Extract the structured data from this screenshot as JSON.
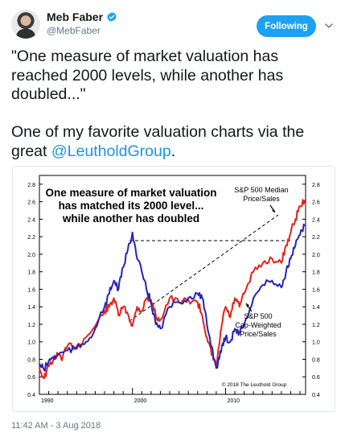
{
  "author": {
    "display_name": "Meb Faber",
    "handle": "@MebFaber",
    "avatar_icon": "avatar",
    "verified_icon": "verified-badge-icon"
  },
  "header": {
    "follow_label": "Following",
    "menu_icon": "chevron-down-icon"
  },
  "tweet": {
    "line_1": "\"One measure of market valuation has reached 2000 levels, while another has doubled...\"",
    "line_2_prefix": "One of my favorite valuation charts via the great ",
    "mention": "@LeutholdGroup",
    "line_2_suffix": ".",
    "timestamp": "11:42 AM - 3 Aug 2018"
  },
  "colors": {
    "accent": "#1da1f2",
    "link": "#1b95e0",
    "median_line": "#e2231a",
    "capweighted_line": "#2424b8"
  },
  "chart_data": {
    "type": "line",
    "title": "One measure of market valuation has matched its 2000 level... while another has doubled",
    "ylim": [
      0.4,
      2.9
    ],
    "y_ticks": [
      "0.4",
      "0.6",
      "0.8",
      "1.0",
      "1.2",
      "1.4",
      "1.6",
      "1.8",
      "2.0",
      "2.2",
      "2.4",
      "2.6",
      "2.8"
    ],
    "x_ticks": [
      "1990",
      "2000",
      "2010"
    ],
    "xlim": [
      1990,
      2018.6
    ],
    "grid": false,
    "copyright": "© 2018 The Leuthold Group",
    "series": [
      {
        "name": "S&P 500 Median Price/Sales",
        "color": "#e2231a",
        "x": [
          1990,
          1990.5,
          1991,
          1991.5,
          1992,
          1992.5,
          1993,
          1994,
          1995,
          1996,
          1997,
          1997.5,
          1998,
          1998.5,
          1999,
          1999.5,
          2000,
          2000.5,
          2001,
          2001.5,
          2002,
          2002.5,
          2003,
          2004,
          2005,
          2006,
          2007,
          2007.5,
          2008,
          2008.5,
          2009,
          2009.3,
          2009.6,
          2010,
          2010.5,
          2011,
          2011.5,
          2012,
          2013,
          2014,
          2015,
          2016,
          2016.5,
          2017,
          2017.5,
          2018,
          2018.5
        ],
        "values": [
          0.7,
          0.58,
          0.72,
          0.8,
          0.85,
          0.82,
          0.95,
          0.95,
          1.05,
          1.18,
          1.35,
          1.4,
          1.5,
          1.3,
          1.4,
          1.32,
          1.18,
          1.4,
          1.35,
          1.5,
          1.48,
          1.3,
          1.25,
          1.5,
          1.45,
          1.48,
          1.45,
          1.3,
          1.05,
          0.85,
          0.72,
          0.95,
          1.2,
          1.4,
          1.28,
          1.5,
          1.4,
          1.55,
          1.8,
          1.9,
          1.95,
          1.9,
          2.1,
          2.25,
          2.4,
          2.55,
          2.62
        ]
      },
      {
        "name": "S&P 500 Cap-Weighted Price/Sales",
        "color": "#2424b8",
        "x": [
          1990,
          1990.5,
          1991,
          1991.5,
          1992,
          1993,
          1994,
          1995,
          1996,
          1997,
          1997.5,
          1998,
          1998.5,
          1999,
          1999.5,
          2000,
          2000.5,
          2001,
          2001.5,
          2002,
          2002.5,
          2003,
          2004,
          2005,
          2006,
          2007,
          2007.5,
          2008,
          2008.5,
          2009,
          2009.3,
          2009.6,
          2010,
          2010.5,
          2011,
          2011.5,
          2012,
          2013,
          2014,
          2015,
          2016,
          2016.5,
          2017,
          2017.5,
          2018,
          2018.5
        ],
        "values": [
          0.75,
          0.68,
          0.78,
          0.82,
          0.85,
          0.9,
          0.92,
          1.0,
          1.15,
          1.4,
          1.55,
          1.7,
          1.6,
          1.85,
          2.05,
          2.25,
          1.95,
          1.8,
          1.6,
          1.45,
          1.2,
          1.15,
          1.4,
          1.45,
          1.5,
          1.55,
          1.5,
          1.2,
          0.95,
          0.7,
          0.8,
          0.95,
          1.05,
          1.0,
          1.15,
          1.1,
          1.2,
          1.5,
          1.65,
          1.7,
          1.62,
          1.8,
          1.95,
          2.1,
          2.22,
          2.32
        ]
      }
    ],
    "annotations": {
      "median_label": "S&P 500 Median\nPrice/Sales",
      "capweighted_label": "S&P 500\nCap-Weighted\nPrice/Sales"
    }
  }
}
